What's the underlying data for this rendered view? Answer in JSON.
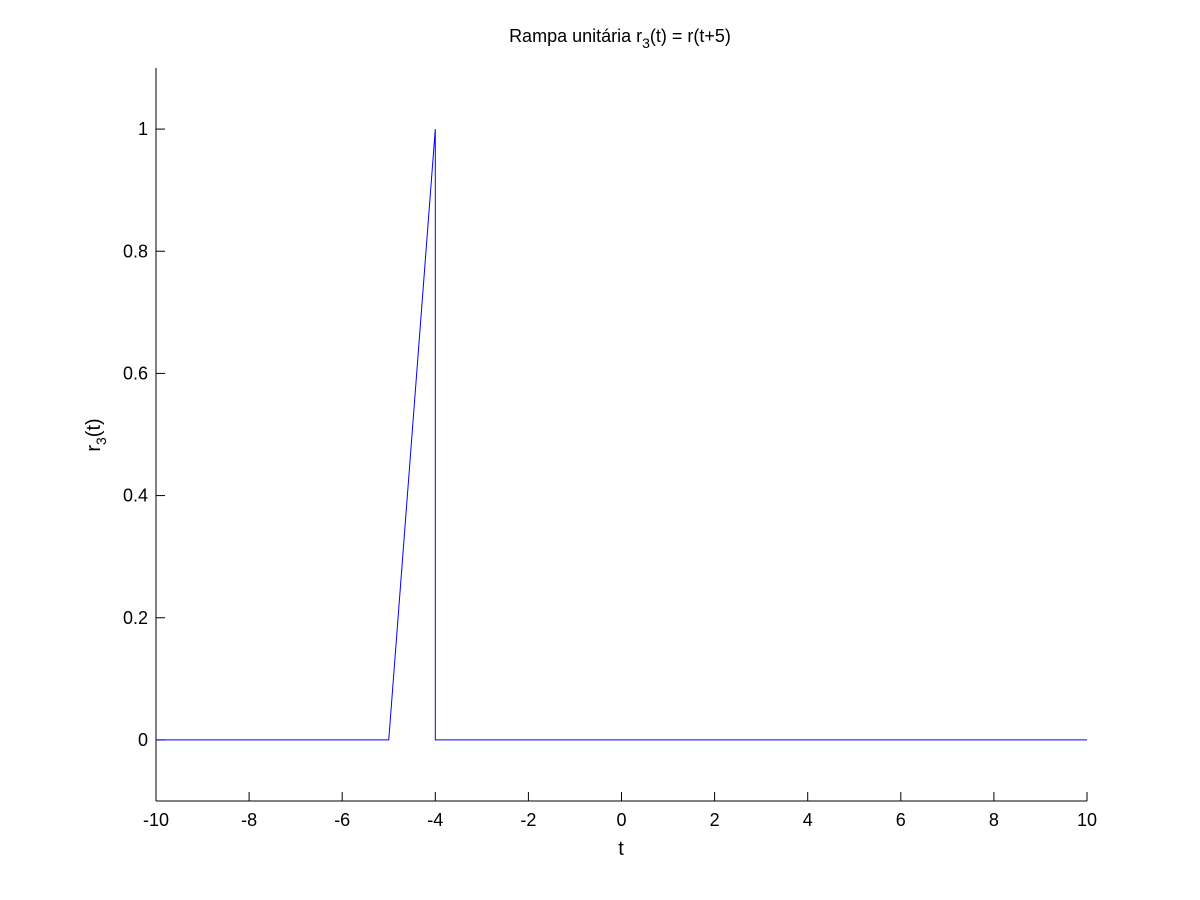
{
  "chart_data": {
    "type": "line",
    "title": {
      "prefix": "Rampa unitária r",
      "subscript": "3",
      "suffix": "(t) = r(t+5)"
    },
    "xlabel": "t",
    "ylabel": {
      "prefix": "r",
      "subscript": "3",
      "suffix": "(t)"
    },
    "xlim": [
      -10,
      10
    ],
    "ylim": [
      -0.1,
      1.1
    ],
    "xticks": [
      -10,
      -8,
      -6,
      -4,
      -2,
      0,
      2,
      4,
      6,
      8,
      10
    ],
    "yticks": [
      0,
      0.2,
      0.4,
      0.6,
      0.8,
      1
    ],
    "grid": false,
    "series": [
      {
        "color": "#0000ff",
        "x": [
          -10,
          -5,
          -4,
          -4,
          10
        ],
        "y": [
          0,
          0,
          1,
          0,
          0
        ]
      }
    ]
  }
}
